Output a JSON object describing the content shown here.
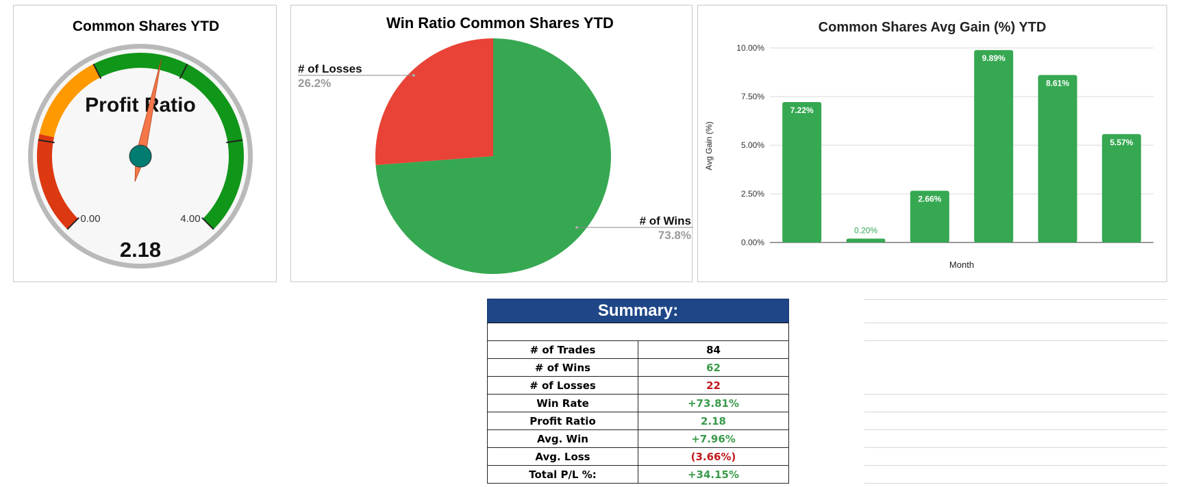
{
  "gauge": {
    "title": "Common Shares YTD",
    "label": "Profit Ratio",
    "min_label": "0.00",
    "max_label": "4.00",
    "min": 0,
    "max": 4,
    "value": 2.18,
    "value_text": "2.18",
    "colors": {
      "red": "#dc3912",
      "orange": "#ff9900",
      "green": "#109618",
      "needle": "#f4774a",
      "hub": "#007c70"
    }
  },
  "pie": {
    "title": "Win Ratio Common Shares YTD",
    "slices": [
      {
        "label": "# of Wins",
        "value": 73.8,
        "pct_text": "73.8%",
        "color": "#36a852"
      },
      {
        "label": "# of Losses",
        "value": 26.2,
        "pct_text": "26.2%",
        "color": "#e84336"
      }
    ]
  },
  "chart_data": {
    "type": "bar",
    "title": "Common Shares Avg Gain (%) YTD",
    "xlabel": "Month",
    "ylabel": "Avg Gain (%)",
    "ylim": [
      0,
      10
    ],
    "yticks": [
      "0.00%",
      "2.50%",
      "5.00%",
      "7.50%",
      "10.00%"
    ],
    "values": [
      7.22,
      0.2,
      2.66,
      9.89,
      8.61,
      5.57
    ],
    "value_labels": [
      "7.22%",
      "0.20%",
      "2.66%",
      "9.89%",
      "8.61%",
      "5.57%"
    ],
    "color": "#36a852",
    "grid": true
  },
  "summary": {
    "title": "Summary:",
    "rows": [
      {
        "label": "# of Trades",
        "value": "84",
        "tone": "plain"
      },
      {
        "label": "# of Wins",
        "value": "62",
        "tone": "pos"
      },
      {
        "label": "# of Losses",
        "value": "22",
        "tone": "neg"
      },
      {
        "label": "Win Rate",
        "value": "+73.81%",
        "tone": "pos"
      },
      {
        "label": "Profit Ratio",
        "value": "2.18",
        "tone": "pos"
      },
      {
        "label": "Avg. Win",
        "value": "+7.96%",
        "tone": "pos"
      },
      {
        "label": "Avg. Loss",
        "value": "(3.66%)",
        "tone": "neg"
      },
      {
        "label": "Total P/L %:",
        "value": "+34.15%",
        "tone": "pos"
      }
    ]
  }
}
